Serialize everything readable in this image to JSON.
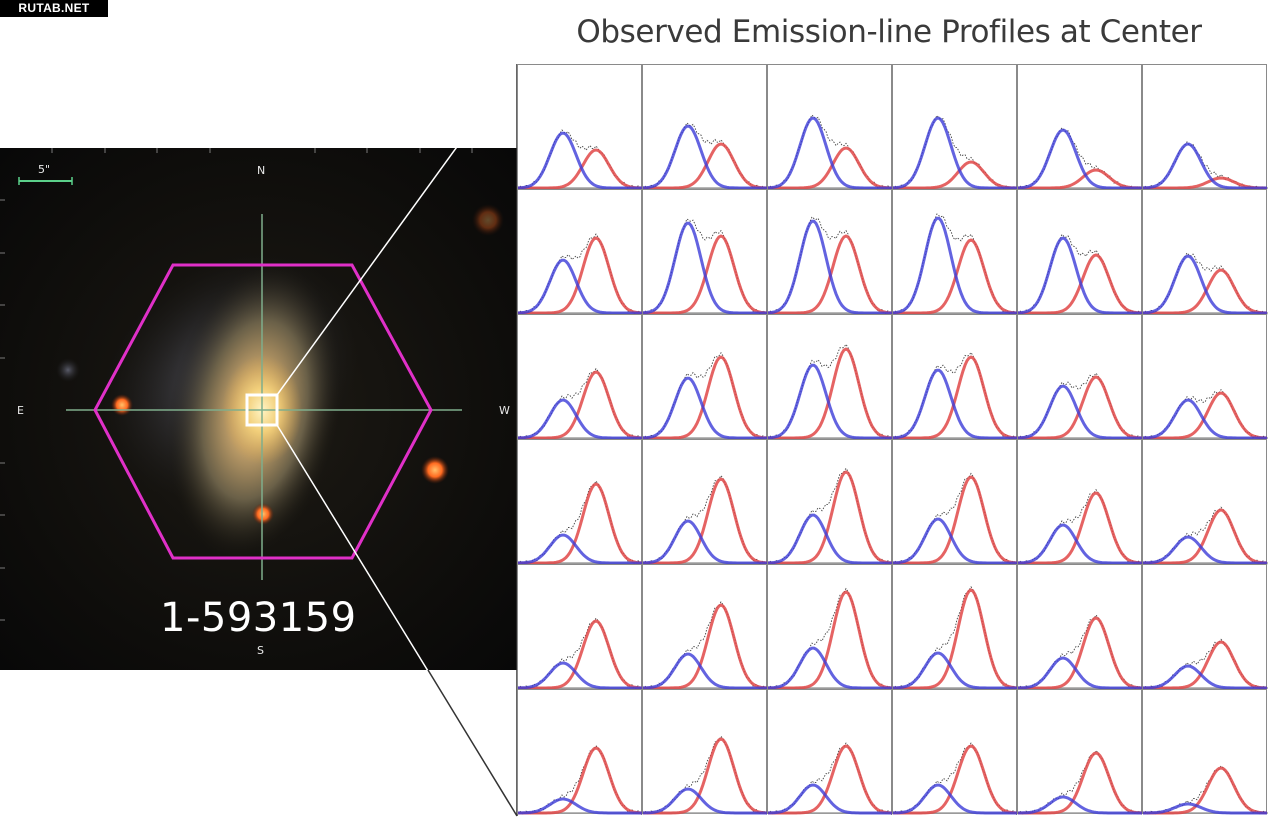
{
  "watermark": "RUTAB.NET",
  "title": "Observed Emission-line Profiles at Center",
  "image": {
    "scale_label": "5\"",
    "compass": {
      "north": "N",
      "south": "S",
      "east": "E",
      "west": "W"
    },
    "galaxy_id": "1-593159",
    "colors": {
      "hexagon": "#e030c8",
      "crosshair": "#7fae8c",
      "zoom_box": "#ffffff"
    }
  },
  "profiles": {
    "rows": 6,
    "cols": 6,
    "colors": {
      "blue_component": "#3c3cd8",
      "red_component": "#e04848",
      "observed": "#444444"
    },
    "blue_peak": [
      [
        0.55,
        0.62,
        0.7,
        0.7,
        0.58,
        0.44
      ],
      [
        0.53,
        0.9,
        0.92,
        0.95,
        0.75,
        0.57
      ],
      [
        0.38,
        0.6,
        0.73,
        0.68,
        0.52,
        0.38
      ],
      [
        0.28,
        0.42,
        0.48,
        0.44,
        0.38,
        0.26
      ],
      [
        0.25,
        0.34,
        0.4,
        0.35,
        0.3,
        0.22
      ],
      [
        0.14,
        0.24,
        0.28,
        0.28,
        0.16,
        0.09
      ]
    ],
    "red_peak": [
      [
        0.38,
        0.44,
        0.4,
        0.26,
        0.18,
        0.1
      ],
      [
        0.75,
        0.77,
        0.77,
        0.73,
        0.58,
        0.43
      ],
      [
        0.66,
        0.81,
        0.89,
        0.81,
        0.61,
        0.45
      ],
      [
        0.79,
        0.84,
        0.91,
        0.86,
        0.7,
        0.53
      ],
      [
        0.67,
        0.83,
        0.96,
        0.98,
        0.7,
        0.46
      ],
      [
        0.65,
        0.74,
        0.67,
        0.67,
        0.6,
        0.45
      ]
    ]
  }
}
